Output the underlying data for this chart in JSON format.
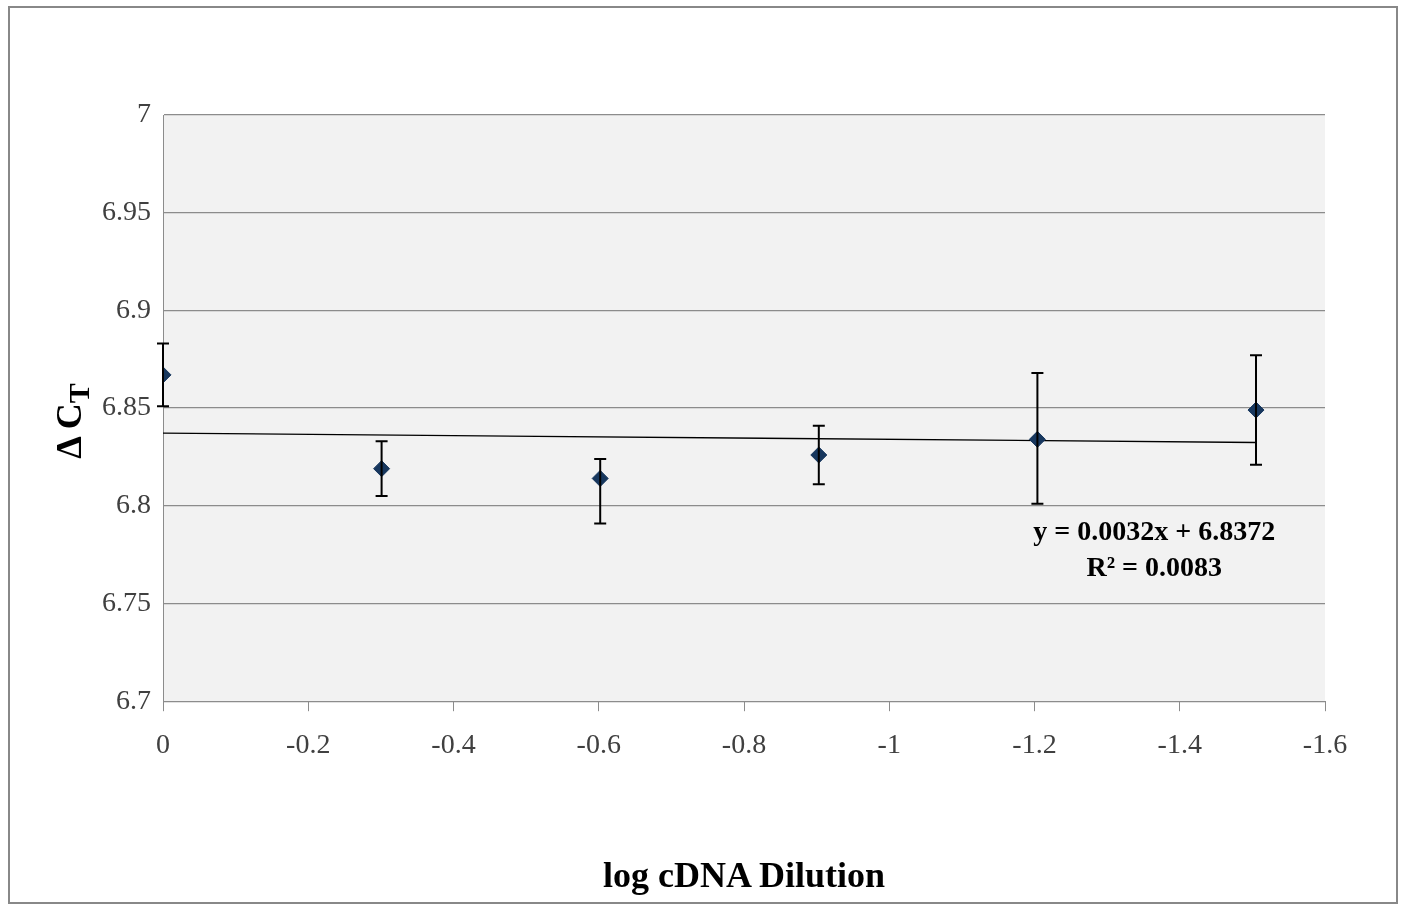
{
  "chart_data": {
    "type": "scatter",
    "xlabel": "log cDNA Dilution",
    "ylabel": "Δ C$_{T}$",
    "xlim": [
      0,
      -1.6
    ],
    "xticks": [
      0,
      -0.2,
      -0.4,
      -0.6,
      -0.8,
      -1,
      -1.2,
      -1.4,
      -1.6
    ],
    "ylim": [
      6.7,
      7
    ],
    "yticks": [
      6.7,
      6.75,
      6.8,
      6.85,
      6.9,
      6.95,
      7
    ],
    "grid": "y",
    "legend": false,
    "marker": "diamond",
    "series": [
      {
        "color": "#17375e",
        "x": [
          0,
          -0.301,
          -0.602,
          -0.903,
          -1.204,
          -1.505
        ],
        "values": [
          6.867,
          6.819,
          6.814,
          6.826,
          6.834,
          6.849
        ],
        "errors": [
          [
            6.851,
            6.883
          ],
          [
            6.805,
            6.833
          ],
          [
            6.791,
            6.824
          ],
          [
            6.811,
            6.841
          ],
          [
            6.801,
            6.868
          ],
          [
            6.821,
            6.877
          ]
        ]
      },
      {
        "type": "line",
        "color": "#000000",
        "marker": "none",
        "x": [
          0,
          -1.505
        ],
        "values": [
          6.8372,
          6.8324
        ]
      }
    ],
    "annotations": [
      "y = 0.0032x + 6.8372",
      "R² = 0.0083"
    ]
  }
}
